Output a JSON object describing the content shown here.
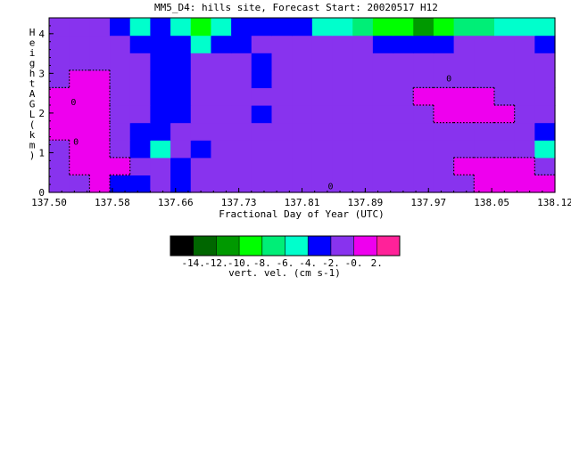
{
  "chart_data": {
    "type": "heatmap",
    "title": "MM5_D4: hills site,  Forecast Start: 20020517 H12",
    "xlabel": "Fractional Day of Year (UTC)",
    "ylabel": "Height AGL (km)",
    "xlim": [
      137.5,
      138.12
    ],
    "ylim": [
      0,
      4.4
    ],
    "x_ticks": [
      "137.50",
      "137.58",
      "137.66",
      "137.73",
      "137.81",
      "137.89",
      "137.97",
      "138.05",
      "138.12"
    ],
    "y_ticks": [
      "0",
      "1",
      "2",
      "3",
      "4"
    ],
    "contour_labels": [
      "0",
      "0",
      "0",
      "0"
    ],
    "colorbar": {
      "label": "vert. vel. (cm s-1)",
      "ticks": [
        "-14.",
        "-12.",
        "-10.",
        "-8.",
        "-6.",
        "-4.",
        "-2.",
        "-0.",
        "2."
      ],
      "colors": [
        "#000000",
        "#006600",
        "#009900",
        "#00ff00",
        "#00ee77",
        "#00ffcc",
        "#0000ff",
        "#8833ee",
        "#ee00ee",
        "#ff2299"
      ]
    },
    "series": [
      {
        "values": [
          [
            -1,
            -1,
            0.5,
            -3,
            -3,
            -2,
            -3,
            -2,
            -1,
            -1,
            -1,
            -1,
            -1,
            -1,
            -1,
            -1,
            -1,
            -1,
            -1,
            -1,
            -1,
            0.5,
            0.5,
            0.5,
            0.5
          ],
          [
            -1,
            0.5,
            0.5,
            0.5,
            -1,
            -1,
            -3,
            -2,
            -1,
            -1,
            -1,
            -1,
            -1,
            -1,
            -1,
            -1,
            -1,
            -1,
            -1,
            -1,
            0.5,
            0.5,
            0.5,
            0.5,
            -1
          ],
          [
            -1,
            0.5,
            0.5,
            -1,
            -3,
            -5,
            -2,
            -3,
            -2,
            -1,
            -1,
            -2,
            -1,
            -1,
            -1,
            -1,
            -1,
            -1,
            -1,
            -1,
            -1,
            -1,
            -1,
            -2,
            -5
          ],
          [
            0.5,
            0.5,
            0.5,
            -2,
            -3,
            -3,
            -2,
            -1,
            -1,
            -2,
            -2,
            -2,
            -2,
            -1,
            -1,
            -1,
            -1,
            -1,
            -1,
            -1,
            -1,
            -1,
            -1,
            -1,
            -3
          ],
          [
            0.5,
            0.5,
            0.5,
            -1,
            -2,
            -3,
            -3,
            -1,
            -1,
            -2,
            -3,
            -2,
            -1,
            -1,
            -1,
            -1,
            -1,
            -1,
            -1,
            0.5,
            0.5,
            0.5,
            0.5,
            -1,
            -1
          ],
          [
            0.5,
            0.5,
            0.5,
            -1,
            -1,
            -3,
            -3,
            -2,
            -1,
            -2,
            -2,
            -2,
            -1,
            -1,
            -1,
            -1,
            -1,
            -1,
            0.5,
            0.5,
            0.5,
            0.5,
            -1,
            -1,
            -1
          ],
          [
            -1,
            0.5,
            0.5,
            -1,
            -1,
            -3,
            -3,
            -2,
            -1,
            -2,
            -3,
            -2,
            -1,
            -1,
            -1,
            -1,
            -1,
            -1,
            -1,
            -1,
            -1,
            -1,
            -1,
            -1,
            -1
          ],
          [
            -1,
            -1,
            -1,
            -1,
            -2,
            -3,
            -3,
            -2,
            -1,
            -2,
            -3,
            -2,
            -2,
            -1,
            -1,
            -1,
            -1,
            -1,
            -1,
            -1,
            -1,
            -1,
            -1,
            -1,
            -1
          ],
          [
            -1,
            -1,
            -1,
            -2,
            -3,
            -4,
            -3,
            -5,
            -4,
            -3,
            -2,
            -2,
            -2,
            -2,
            -1,
            -2,
            -3,
            -3,
            -3,
            -3,
            -2,
            -2,
            -2,
            -2,
            -3
          ],
          [
            -1,
            -1,
            -2,
            -3,
            -5,
            -4,
            -5,
            -9,
            -5,
            -3,
            -3,
            -4,
            -4,
            -6,
            -6,
            -8,
            -9,
            -10,
            -12,
            -10,
            -8,
            -7,
            -6,
            -5,
            -5
          ]
        ]
      }
    ]
  }
}
